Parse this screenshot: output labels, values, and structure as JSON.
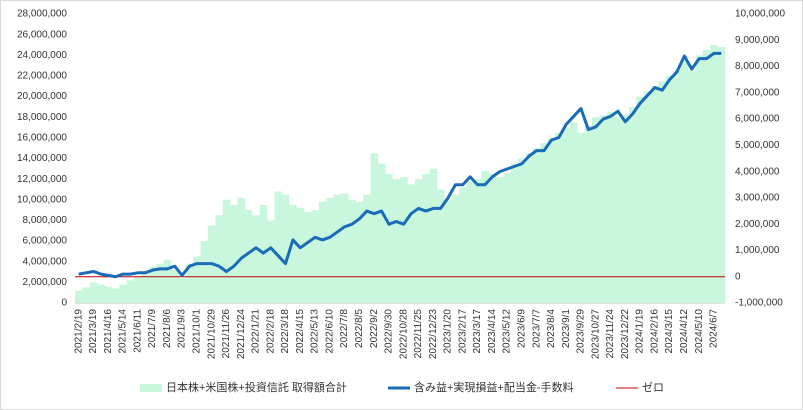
{
  "chart_data": {
    "type": "bar_line",
    "categories": [
      "2021/2/19",
      null,
      "2021/3/19",
      null,
      "2021/4/16",
      null,
      "2021/5/14",
      null,
      "2021/6/11",
      null,
      "2021/7/9",
      null,
      "2021/8/6",
      null,
      "2021/9/3",
      null,
      "2021/10/1",
      null,
      "2021/10/29",
      null,
      "2021/11/26",
      null,
      "2021/12/24",
      null,
      "2022/1/21",
      null,
      "2022/2/18",
      null,
      "2022/3/18",
      null,
      "2022/4/15",
      null,
      "2022/5/13",
      null,
      "2022/6/10",
      null,
      "2022/7/8",
      null,
      "2022/8/5",
      null,
      "2022/9/2",
      null,
      "2022/9/30",
      null,
      "2022/10/28",
      null,
      "2022/11/25",
      null,
      "2022/12/23",
      null,
      "2023/1/20",
      null,
      "2023/2/17",
      null,
      "2023/3/17",
      null,
      "2023/4/14",
      null,
      "2023/5/12",
      null,
      "2023/6/9",
      null,
      "2023/7/7",
      null,
      "2023/8/4",
      null,
      "2023/9/1",
      null,
      "2023/9/29",
      null,
      "2023/10/27",
      null,
      "2023/11/24",
      null,
      "2023/12/22",
      null,
      "2024/1/19",
      null,
      "2024/2/16",
      null,
      "2024/3/15",
      null,
      "2024/4/12",
      null,
      "2024/5/10",
      null,
      "2024/6/7",
      null
    ],
    "series": [
      {
        "name": "日本株+米国株+投資信託 取得額合計",
        "type": "bar",
        "color": "#c8f7dd",
        "axis": "y",
        "values": [
          1200000,
          1500000,
          2000000,
          1800000,
          1600000,
          1400000,
          1800000,
          2200000,
          2500000,
          2800000,
          3500000,
          3800000,
          4200000,
          3200000,
          2400000,
          3800000,
          4500000,
          6000000,
          7500000,
          8500000,
          10000000,
          9500000,
          10200000,
          9000000,
          8500000,
          9500000,
          8000000,
          10800000,
          10500000,
          9500000,
          9200000,
          8800000,
          9000000,
          9800000,
          10200000,
          10500000,
          10600000,
          10000000,
          9800000,
          10500000,
          14500000,
          13500000,
          12500000,
          12000000,
          12200000,
          11500000,
          12000000,
          12500000,
          13000000,
          11000000,
          10000000,
          10500000,
          11200000,
          11800000,
          12000000,
          12800000,
          12500000,
          12200000,
          12600000,
          13500000,
          14000000,
          14500000,
          15000000,
          15500000,
          16000000,
          16500000,
          17000000,
          17500000,
          16500000,
          17200000,
          18000000,
          18200000,
          18500000,
          18000000,
          18200000,
          19000000,
          20000000,
          20500000,
          21000000,
          21500000,
          22000000,
          22500000,
          23500000,
          22500000,
          24000000,
          24500000,
          25000000,
          24800000
        ]
      },
      {
        "name": "含み益+実現損益+配当金-手数料",
        "type": "line",
        "color": "#1a6bb8",
        "axis": "y2",
        "values": [
          100000,
          150000,
          200000,
          100000,
          50000,
          0,
          100000,
          100000,
          150000,
          150000,
          250000,
          300000,
          300000,
          400000,
          50000,
          400000,
          500000,
          500000,
          500000,
          400000,
          200000,
          400000,
          700000,
          900000,
          1100000,
          900000,
          1100000,
          800000,
          500000,
          1400000,
          1100000,
          1300000,
          1500000,
          1400000,
          1500000,
          1700000,
          1900000,
          2000000,
          2200000,
          2500000,
          2400000,
          2500000,
          2000000,
          2100000,
          2000000,
          2400000,
          2600000,
          2500000,
          2600000,
          2600000,
          3000000,
          3500000,
          3500000,
          3800000,
          3500000,
          3500000,
          3800000,
          4000000,
          4100000,
          4200000,
          4300000,
          4600000,
          4800000,
          4800000,
          5200000,
          5300000,
          5800000,
          6100000,
          6400000,
          5600000,
          5700000,
          6000000,
          6100000,
          6300000,
          5900000,
          6200000,
          6600000,
          6900000,
          7200000,
          7100000,
          7500000,
          7800000,
          8400000,
          7900000,
          8300000,
          8300000,
          8500000,
          8500000
        ]
      }
    ],
    "reference_line": {
      "name": "ゼロ",
      "value": 0,
      "color": "#c00000",
      "axis": "y2"
    },
    "ylim": [
      0,
      28000000
    ],
    "yticks": [
      {
        "value": 0,
        "label": "0"
      },
      {
        "value": 2000000,
        "label": "2,000,000"
      },
      {
        "value": 4000000,
        "label": "4,000,000"
      },
      {
        "value": 6000000,
        "label": "6,000,000"
      },
      {
        "value": 8000000,
        "label": "8,000,000"
      },
      {
        "value": 10000000,
        "label": "10,000,000"
      },
      {
        "value": 12000000,
        "label": "12,000,000"
      },
      {
        "value": 14000000,
        "label": "14,000,000"
      },
      {
        "value": 16000000,
        "label": "16,000,000"
      },
      {
        "value": 18000000,
        "label": "18,000,000"
      },
      {
        "value": 20000000,
        "label": "20,000,000"
      },
      {
        "value": 22000000,
        "label": "22,000,000"
      },
      {
        "value": 24000000,
        "label": "24,000,000"
      },
      {
        "value": 26000000,
        "label": "26,000,000"
      },
      {
        "value": 28000000,
        "label": "28,000,000"
      }
    ],
    "y2lim": [
      -1000000,
      10000000
    ],
    "y2ticks": [
      {
        "value": -1000000,
        "label": "-1,000,000"
      },
      {
        "value": 0,
        "label": "0"
      },
      {
        "value": 1000000,
        "label": "1,000,000"
      },
      {
        "value": 2000000,
        "label": "2,000,000"
      },
      {
        "value": 3000000,
        "label": "3,000,000"
      },
      {
        "value": 4000000,
        "label": "4,000,000"
      },
      {
        "value": 5000000,
        "label": "5,000,000"
      },
      {
        "value": 6000000,
        "label": "6,000,000"
      },
      {
        "value": 7000000,
        "label": "7,000,000"
      },
      {
        "value": 8000000,
        "label": "8,000,000"
      },
      {
        "value": 9000000,
        "label": "9,000,000"
      },
      {
        "value": 10000000,
        "label": "10,000,000"
      }
    ],
    "legend": "bottom"
  }
}
